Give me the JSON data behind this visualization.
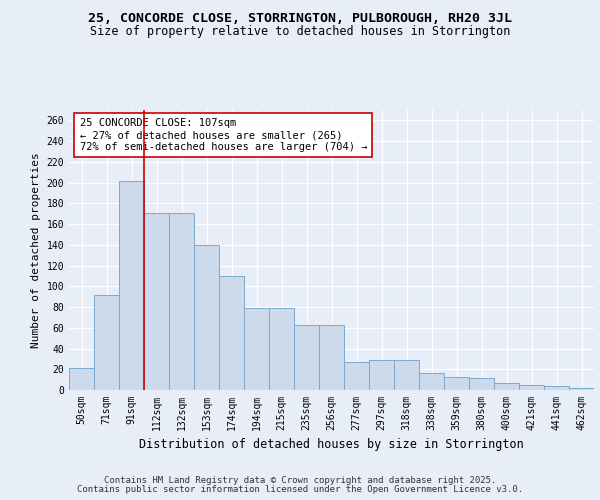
{
  "title_line1": "25, CONCORDE CLOSE, STORRINGTON, PULBOROUGH, RH20 3JL",
  "title_line2": "Size of property relative to detached houses in Storrington",
  "xlabel": "Distribution of detached houses by size in Storrington",
  "ylabel": "Number of detached properties",
  "categories": [
    "50sqm",
    "71sqm",
    "91sqm",
    "112sqm",
    "132sqm",
    "153sqm",
    "174sqm",
    "194sqm",
    "215sqm",
    "235sqm",
    "256sqm",
    "277sqm",
    "297sqm",
    "318sqm",
    "338sqm",
    "359sqm",
    "380sqm",
    "400sqm",
    "421sqm",
    "441sqm",
    "462sqm"
  ],
  "bar_values": [
    21,
    92,
    202,
    171,
    171,
    140,
    110,
    79,
    79,
    63,
    63,
    27,
    29,
    29,
    16,
    13,
    12,
    7,
    5,
    4,
    2
  ],
  "bar_color": "#ccdaeb",
  "bar_edge_color": "#7aaace",
  "vline_x": 2.5,
  "vline_color": "#cc0000",
  "annotation_text": "25 CONCORDE CLOSE: 107sqm\n← 27% of detached houses are smaller (265)\n72% of semi-detached houses are larger (704) →",
  "annotation_box_color": "white",
  "annotation_box_edge": "#cc0000",
  "ylim": [
    0,
    270
  ],
  "yticks": [
    0,
    20,
    40,
    60,
    80,
    100,
    120,
    140,
    160,
    180,
    200,
    220,
    240,
    260
  ],
  "footer_line1": "Contains HM Land Registry data © Crown copyright and database right 2025.",
  "footer_line2": "Contains public sector information licensed under the Open Government Licence v3.0.",
  "bg_color": "#e8eef8",
  "grid_color": "#ffffff",
  "title_fontsize": 9.5,
  "subtitle_fontsize": 8.5,
  "axis_label_fontsize": 8,
  "tick_fontsize": 7,
  "annotation_fontsize": 7.5,
  "footer_fontsize": 6.5
}
